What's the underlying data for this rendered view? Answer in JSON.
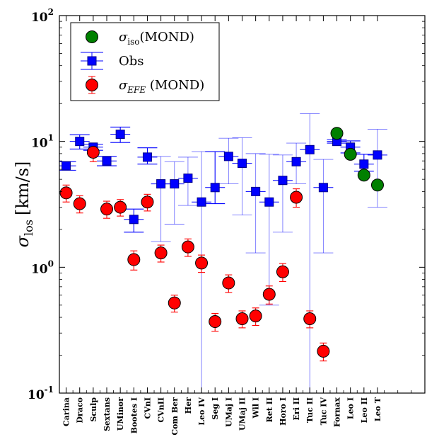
{
  "chart_data": {
    "type": "scatter",
    "ylabel": "σlos [km/s]",
    "ylabel_main": "σ",
    "ylabel_sub": "los",
    "ylabel_units": "[km/s]",
    "yscale": "log",
    "ylim": [
      0.1,
      100
    ],
    "y_ticks": [
      {
        "value": 0.1,
        "base": "10",
        "exp": "-1"
      },
      {
        "value": 1,
        "base": "10",
        "exp": "0"
      },
      {
        "value": 10,
        "base": "10",
        "exp": "1"
      },
      {
        "value": 100,
        "base": "10",
        "exp": "2"
      }
    ],
    "categories": [
      "Carina",
      "Draco",
      "Sculp",
      "Sextans",
      "UMinor",
      "Bootes I",
      "CVnI",
      "CVnII",
      "Com Ber",
      "Her",
      "Leo IV",
      "Seg I",
      "UMaj I",
      "UMaj II",
      "Wil I",
      "Ret II",
      "Horo I",
      "Eri II",
      "Tuc II",
      "Tuc IV",
      "Fornax",
      "Leo I",
      "Leo II",
      "Leo T"
    ],
    "legend_position": "upper-left",
    "legend": [
      {
        "series": "iso",
        "label_main": "σ",
        "label_sub": "iso",
        "label_rest": "(MOND)"
      },
      {
        "series": "obs",
        "label_main": "Obs",
        "label_sub": "",
        "label_rest": ""
      },
      {
        "series": "efe",
        "label_main": "σ",
        "label_sub": "EFE",
        "label_rest": " (MOND)"
      }
    ],
    "series": [
      {
        "key": "obs",
        "color": "#0000ff",
        "marker": "square",
        "points": [
          {
            "x": 0,
            "y": 6.4,
            "err_lo": 0.5,
            "err_hi": 0.5
          },
          {
            "x": 1,
            "y": 10.0,
            "err_lo": 1.3,
            "err_hi": 1.3
          },
          {
            "x": 2,
            "y": 9.0,
            "err_lo": 0.5,
            "err_hi": 0.5
          },
          {
            "x": 3,
            "y": 7.0,
            "err_lo": 0.6,
            "err_hi": 0.6
          },
          {
            "x": 4,
            "y": 11.4,
            "err_lo": 1.6,
            "err_hi": 1.6
          },
          {
            "x": 5,
            "y": 2.4,
            "err_lo": 0.5,
            "err_hi": 0.5
          },
          {
            "x": 6,
            "y": 7.5,
            "err_lo": 0.9,
            "err_hi": 1.4
          },
          {
            "x": 7,
            "y": 4.6,
            "err_lo": 3.0,
            "err_hi": 3.0
          },
          {
            "x": 8,
            "y": 4.6,
            "err_lo": 2.4,
            "err_hi": 2.3
          },
          {
            "x": 9,
            "y": 5.1,
            "err_lo": 2.0,
            "err_hi": 2.4
          },
          {
            "x": 10,
            "y": 3.3,
            "err_lo": 3.21,
            "err_hi": 5.0
          },
          {
            "x": 11,
            "y": 4.3,
            "err_lo": 1.1,
            "err_hi": 4.0
          },
          {
            "x": 12,
            "y": 7.6,
            "err_lo": 3.0,
            "err_hi": 3.0
          },
          {
            "x": 13,
            "y": 6.7,
            "err_lo": 4.1,
            "err_hi": 4.0
          },
          {
            "x": 14,
            "y": 4.0,
            "err_lo": 2.7,
            "err_hi": 4.0
          },
          {
            "x": 15,
            "y": 3.3,
            "err_lo": 2.8,
            "err_hi": 4.6
          },
          {
            "x": 16,
            "y": 4.9,
            "err_lo": 3.0,
            "err_hi": 2.9
          },
          {
            "x": 17,
            "y": 6.9,
            "err_lo": 2.3,
            "err_hi": 2.8
          },
          {
            "x": 18,
            "y": 8.6,
            "err_lo": 8.5,
            "err_hi": 8.0
          },
          {
            "x": 19,
            "y": 4.3,
            "err_lo": 3.0,
            "err_hi": 2.9
          },
          {
            "x": 20,
            "y": 10.0,
            "err_lo": 0.3,
            "err_hi": 0.3
          },
          {
            "x": 21,
            "y": 9.0,
            "err_lo": 0.9,
            "err_hi": 1.1
          },
          {
            "x": 22,
            "y": 6.6,
            "err_lo": 0.8,
            "err_hi": 1.3
          },
          {
            "x": 23,
            "y": 7.8,
            "err_lo": 4.8,
            "err_hi": 4.7
          }
        ]
      },
      {
        "key": "efe",
        "color": "#ff0000",
        "marker": "circle",
        "points": [
          {
            "x": 0,
            "y": 3.9,
            "err_lo": 0.6,
            "err_hi": 0.6
          },
          {
            "x": 1,
            "y": 3.2,
            "err_lo": 0.5,
            "err_hi": 0.5
          },
          {
            "x": 2,
            "y": 8.2,
            "err_lo": 1.3,
            "err_hi": 1.3
          },
          {
            "x": 3,
            "y": 2.9,
            "err_lo": 0.45,
            "err_hi": 0.45
          },
          {
            "x": 4,
            "y": 3.0,
            "err_lo": 0.45,
            "err_hi": 0.45
          },
          {
            "x": 5,
            "y": 1.15,
            "err_lo": 0.2,
            "err_hi": 0.2
          },
          {
            "x": 6,
            "y": 3.3,
            "err_lo": 0.5,
            "err_hi": 0.5
          },
          {
            "x": 7,
            "y": 1.3,
            "err_lo": 0.2,
            "err_hi": 0.2
          },
          {
            "x": 8,
            "y": 0.52,
            "err_lo": 0.08,
            "err_hi": 0.08
          },
          {
            "x": 9,
            "y": 1.45,
            "err_lo": 0.23,
            "err_hi": 0.23
          },
          {
            "x": 10,
            "y": 1.08,
            "err_lo": 0.17,
            "err_hi": 0.17
          },
          {
            "x": 11,
            "y": 0.37,
            "err_lo": 0.06,
            "err_hi": 0.06
          },
          {
            "x": 12,
            "y": 0.75,
            "err_lo": 0.12,
            "err_hi": 0.12
          },
          {
            "x": 13,
            "y": 0.39,
            "err_lo": 0.06,
            "err_hi": 0.06
          },
          {
            "x": 14,
            "y": 0.41,
            "err_lo": 0.065,
            "err_hi": 0.065
          },
          {
            "x": 15,
            "y": 0.61,
            "err_lo": 0.1,
            "err_hi": 0.1
          },
          {
            "x": 16,
            "y": 0.92,
            "err_lo": 0.15,
            "err_hi": 0.15
          },
          {
            "x": 17,
            "y": 3.6,
            "err_lo": 0.6,
            "err_hi": 0.6
          },
          {
            "x": 18,
            "y": 0.39,
            "err_lo": 0.06,
            "err_hi": 0.06
          },
          {
            "x": 19,
            "y": 0.215,
            "err_lo": 0.035,
            "err_hi": 0.035
          }
        ]
      },
      {
        "key": "iso",
        "color": "#008000",
        "marker": "circle",
        "points": [
          {
            "x": 20,
            "y": 11.6
          },
          {
            "x": 21,
            "y": 7.9
          },
          {
            "x": 22,
            "y": 5.4
          },
          {
            "x": 23,
            "y": 4.5
          }
        ]
      }
    ]
  }
}
